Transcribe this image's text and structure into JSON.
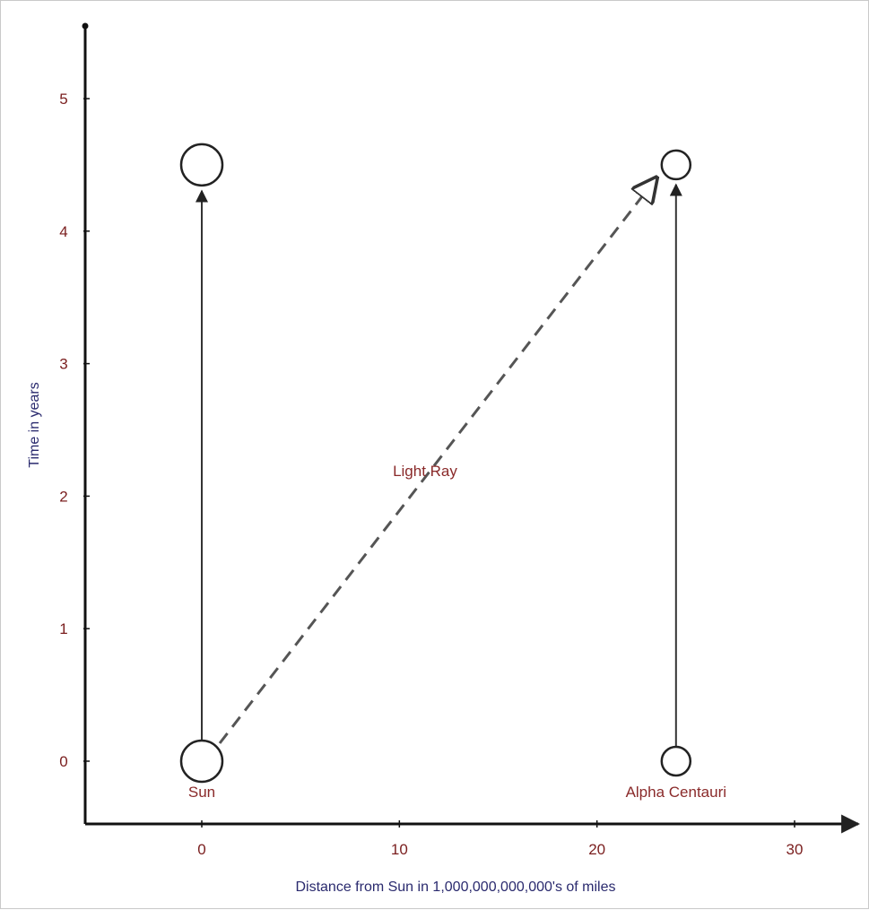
{
  "chart_data": {
    "type": "line",
    "xlabel": "Distance from Sun in 1,000,000,000,000's of miles",
    "ylabel": "Time in years",
    "xlim": [
      -6,
      33
    ],
    "ylim": [
      -0.48,
      5.55
    ],
    "xticks": [
      0,
      10,
      20,
      30
    ],
    "yticks": [
      0,
      1,
      2,
      3,
      4,
      5
    ],
    "grid": false,
    "series": [
      {
        "name": "Sun",
        "style": "solid",
        "x": [
          0,
          0
        ],
        "y": [
          0,
          4.5
        ],
        "markers": [
          {
            "x": 0,
            "y": 0,
            "size": "large"
          },
          {
            "x": 0,
            "y": 4.5,
            "size": "large"
          }
        ]
      },
      {
        "name": "Alpha Centauri",
        "style": "solid",
        "x": [
          24,
          24
        ],
        "y": [
          0,
          4.5
        ],
        "markers": [
          {
            "x": 24,
            "y": 0,
            "size": "small"
          },
          {
            "x": 24,
            "y": 4.5,
            "size": "small"
          }
        ]
      },
      {
        "name": "Light Ray",
        "style": "dashed",
        "x": [
          0,
          23
        ],
        "y": [
          0,
          4.4
        ]
      }
    ],
    "annotations": [
      {
        "text": "Sun",
        "x": 0,
        "y": -0.27
      },
      {
        "text": "Alpha Centauri",
        "x": 24,
        "y": -0.27
      },
      {
        "text": "Light Ray",
        "x": 11.3,
        "y": 2.15
      }
    ]
  }
}
